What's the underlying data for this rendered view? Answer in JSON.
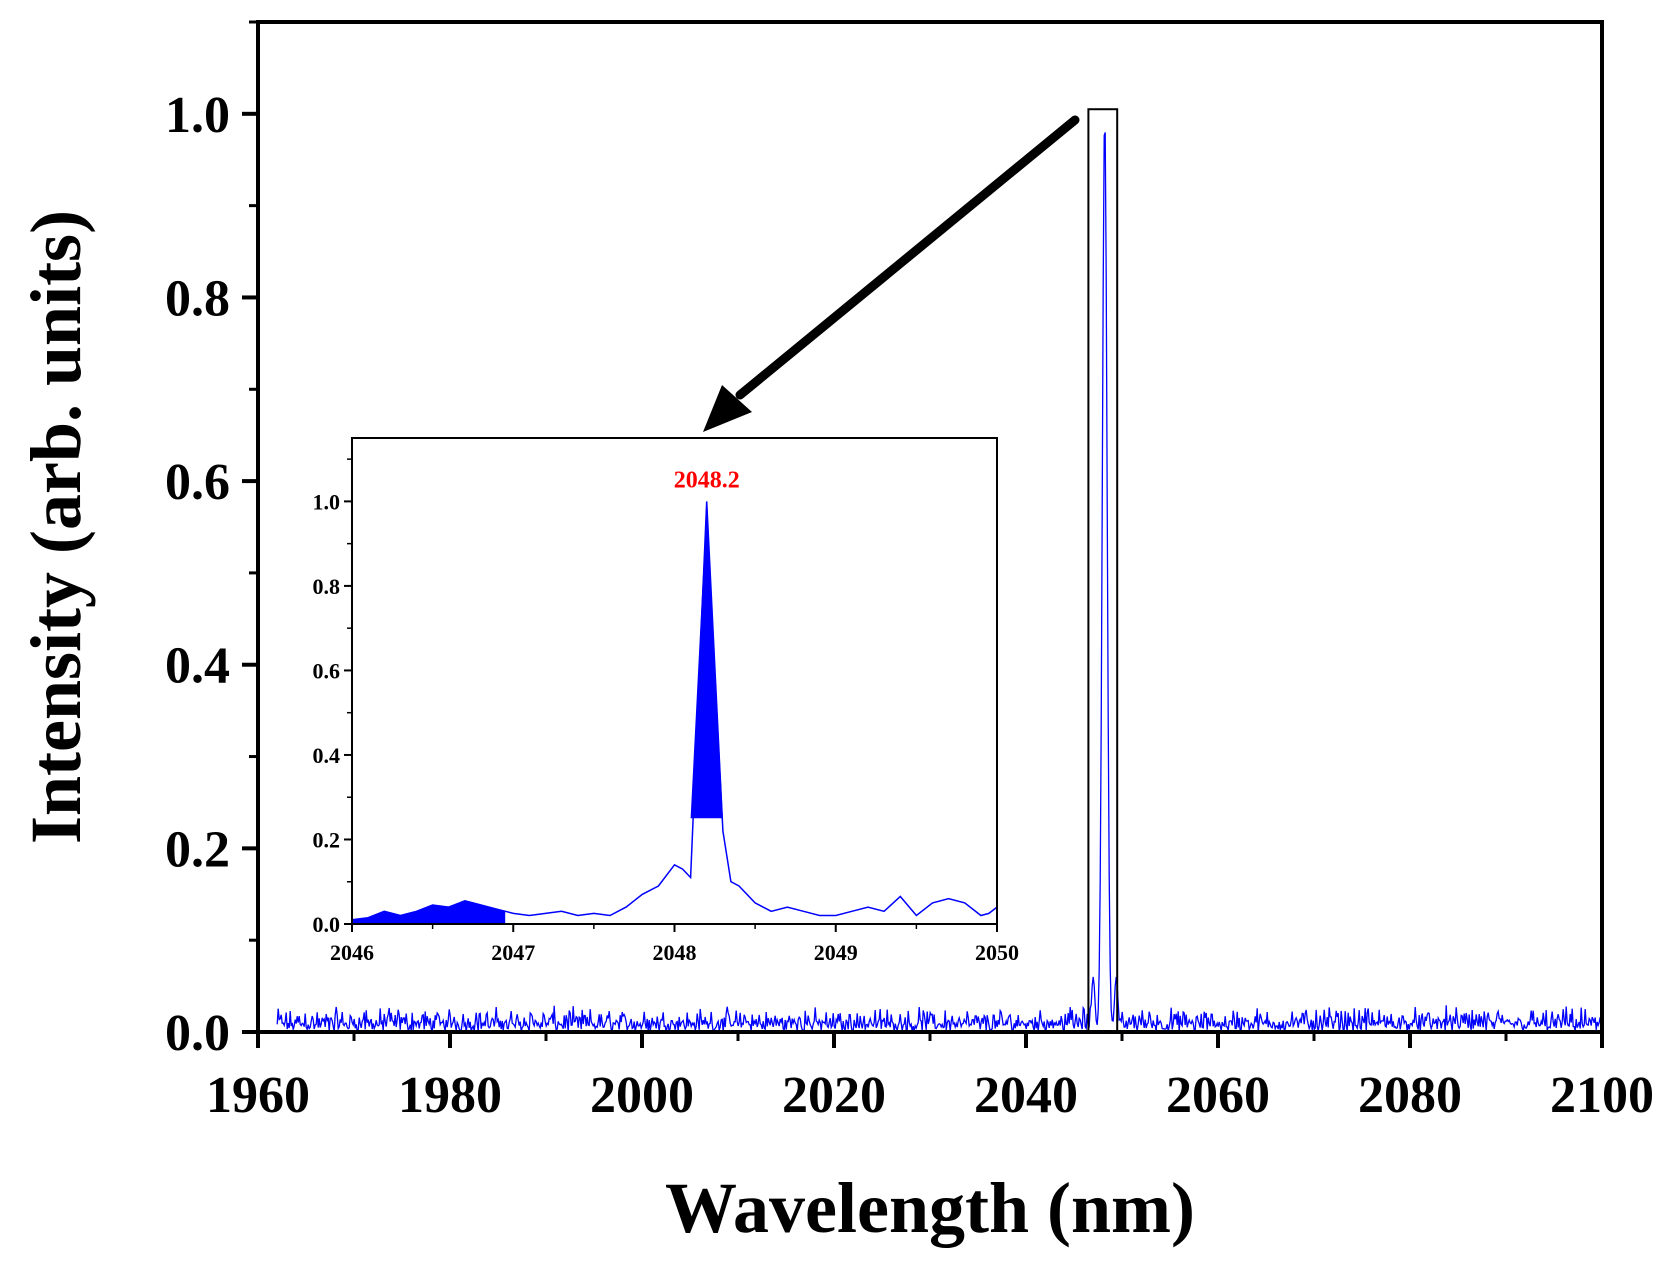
{
  "colors": {
    "series": "#0000ff",
    "frame": "#000000",
    "peak_label": "#ff0000",
    "background": "#ffffff"
  },
  "chart_data": [
    {
      "id": "main",
      "type": "line",
      "title": "",
      "xlabel": "Wavelength (nm)",
      "ylabel": "Intensity (arb. units)",
      "xlim": [
        1960,
        2100
      ],
      "ylim": [
        0,
        1.1
      ],
      "xticks": [
        1960,
        1980,
        2000,
        2020,
        2040,
        2060,
        2080,
        2100
      ],
      "xtick_labels": [
        "1960",
        "1980",
        "2000",
        "2020",
        "2040",
        "2060",
        "2080",
        "2100"
      ],
      "yticks": [
        0.0,
        0.2,
        0.4,
        0.6,
        0.8,
        1.0
      ],
      "ytick_labels": [
        "0.0",
        "0.2",
        "0.4",
        "0.6",
        "0.8",
        "1.0"
      ],
      "grid": false,
      "series": [
        {
          "name": "spectrum",
          "x_start": 1962,
          "x_end": 2100,
          "noise_floor": 0.012,
          "noise_amplitude": 0.018,
          "peaks": [
            {
              "x": 2048.2,
              "y": 1.0
            },
            {
              "x": 2047.0,
              "y": 0.06
            },
            {
              "x": 2049.4,
              "y": 0.06
            }
          ]
        }
      ],
      "zoom_region": {
        "x": [
          2046.5,
          2049.5
        ],
        "y": [
          0,
          1.005
        ]
      }
    },
    {
      "id": "inset",
      "type": "line",
      "title": "",
      "xlabel": "",
      "ylabel": "",
      "xlim": [
        2046,
        2050
      ],
      "ylim": [
        0,
        1.15
      ],
      "xticks": [
        2046,
        2047,
        2048,
        2049,
        2050
      ],
      "xtick_labels": [
        "2046",
        "2047",
        "2048",
        "2049",
        "2050"
      ],
      "yticks": [
        0.0,
        0.2,
        0.4,
        0.6,
        0.8,
        1.0
      ],
      "ytick_labels": [
        "0.0",
        "0.2",
        "0.4",
        "0.6",
        "0.8",
        "1.0"
      ],
      "grid": false,
      "annotation": {
        "text": "2048.2",
        "x": 2048.2,
        "y": 1.0
      },
      "series": [
        {
          "name": "spectrum-zoom",
          "x": [
            2046.0,
            2046.1,
            2046.2,
            2046.3,
            2046.4,
            2046.5,
            2046.6,
            2046.7,
            2046.8,
            2046.9,
            2047.0,
            2047.1,
            2047.2,
            2047.3,
            2047.4,
            2047.5,
            2047.6,
            2047.7,
            2047.8,
            2047.9,
            2048.0,
            2048.05,
            2048.1,
            2048.2,
            2048.3,
            2048.35,
            2048.4,
            2048.5,
            2048.6,
            2048.7,
            2048.8,
            2048.9,
            2049.0,
            2049.1,
            2049.2,
            2049.3,
            2049.4,
            2049.5,
            2049.6,
            2049.7,
            2049.8,
            2049.9,
            2049.95,
            2050.0
          ],
          "y": [
            0.01,
            0.015,
            0.03,
            0.02,
            0.03,
            0.045,
            0.04,
            0.055,
            0.045,
            0.035,
            0.025,
            0.02,
            0.025,
            0.03,
            0.02,
            0.025,
            0.02,
            0.04,
            0.07,
            0.09,
            0.14,
            0.13,
            0.11,
            1.0,
            0.22,
            0.1,
            0.09,
            0.05,
            0.03,
            0.04,
            0.03,
            0.02,
            0.02,
            0.03,
            0.04,
            0.03,
            0.065,
            0.02,
            0.05,
            0.06,
            0.05,
            0.02,
            0.025,
            0.04
          ]
        }
      ],
      "filled_regions": [
        {
          "x": [
            2046.0,
            2046.95
          ],
          "y_top": "curve"
        },
        {
          "x": [
            2048.05,
            2048.3
          ],
          "y_from": 0.25,
          "y_top": "curve"
        }
      ]
    }
  ]
}
